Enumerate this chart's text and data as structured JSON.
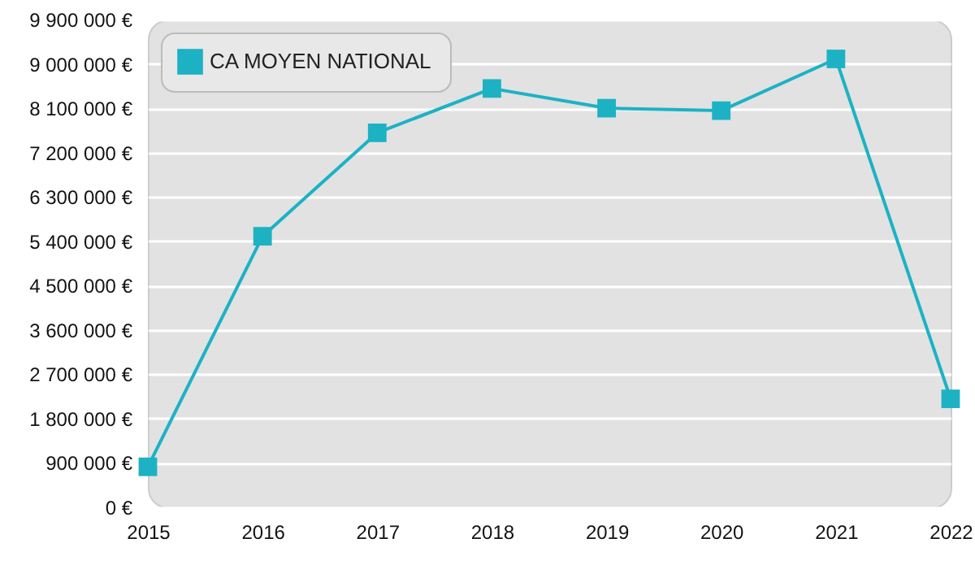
{
  "chart_data": {
    "type": "line",
    "categories": [
      "2015",
      "2016",
      "2017",
      "2018",
      "2019",
      "2020",
      "2021",
      "2022"
    ],
    "series": [
      {
        "name": "CA MOYEN NATIONAL",
        "color": "#1cb2c4",
        "values": [
          820000,
          5500000,
          7600000,
          8500000,
          8100000,
          8050000,
          9100000,
          2200000
        ]
      }
    ],
    "ylim": [
      0,
      9900000
    ],
    "yticks": [
      {
        "value": 0,
        "label": "0 €"
      },
      {
        "value": 900000,
        "label": "900 000 €"
      },
      {
        "value": 1800000,
        "label": "1 800 000 €"
      },
      {
        "value": 2700000,
        "label": "2 700 000 €"
      },
      {
        "value": 3600000,
        "label": "3 600 000 €"
      },
      {
        "value": 4500000,
        "label": "4 500 000 €"
      },
      {
        "value": 5400000,
        "label": "5 400 000 €"
      },
      {
        "value": 6300000,
        "label": "6 300 000 €"
      },
      {
        "value": 7200000,
        "label": "7 200 000 €"
      },
      {
        "value": 8100000,
        "label": "8 100 000 €"
      },
      {
        "value": 9000000,
        "label": "9 000 000 €"
      },
      {
        "value": 9900000,
        "label": "9 900 000 €"
      }
    ],
    "grid": "y",
    "legend": "top left",
    "marker": "square",
    "line_style": "solid"
  }
}
